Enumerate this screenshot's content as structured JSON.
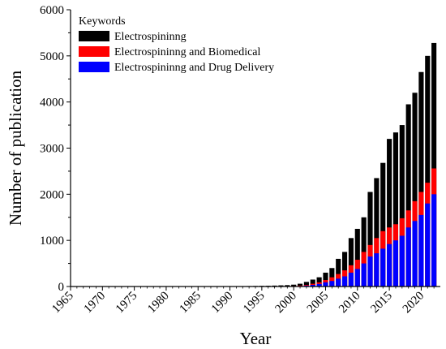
{
  "chart_data": {
    "type": "bar",
    "xlabel": "Year",
    "ylabel": "Number of publication",
    "ylim": [
      0,
      6000
    ],
    "xlim": [
      1965,
      2023
    ],
    "yticks": [
      0,
      1000,
      2000,
      3000,
      4000,
      5000,
      6000
    ],
    "xticks": [
      1965,
      1970,
      1975,
      1980,
      1985,
      1990,
      1995,
      2000,
      2005,
      2010,
      2015,
      2020
    ],
    "legend": {
      "title": "Keywords",
      "placement": "top-left"
    },
    "categories": [
      1967,
      1968,
      1969,
      1970,
      1971,
      1972,
      1973,
      1974,
      1975,
      1976,
      1977,
      1978,
      1979,
      1980,
      1981,
      1982,
      1983,
      1984,
      1985,
      1986,
      1987,
      1988,
      1989,
      1990,
      1991,
      1992,
      1993,
      1994,
      1995,
      1996,
      1997,
      1998,
      1999,
      2000,
      2001,
      2002,
      2003,
      2004,
      2005,
      2006,
      2007,
      2008,
      2009,
      2010,
      2011,
      2012,
      2013,
      2014,
      2015,
      2016,
      2017,
      2018,
      2019,
      2020,
      2021,
      2022
    ],
    "series": [
      {
        "name": "Electrospininng",
        "color": "#000000",
        "values": [
          2,
          2,
          2,
          2,
          2,
          3,
          3,
          3,
          3,
          3,
          3,
          4,
          4,
          4,
          4,
          4,
          5,
          5,
          5,
          5,
          6,
          6,
          6,
          7,
          8,
          9,
          10,
          12,
          14,
          16,
          20,
          25,
          30,
          40,
          60,
          100,
          150,
          200,
          300,
          400,
          600,
          750,
          1050,
          1250,
          1500,
          2050,
          2350,
          2680,
          3200,
          3340,
          3500,
          3950,
          4200,
          4650,
          5000,
          5280
        ]
      },
      {
        "name": "Electrospininng and Biomedical",
        "color": "#ff0000",
        "values": [
          0,
          0,
          0,
          0,
          0,
          0,
          0,
          0,
          0,
          0,
          0,
          0,
          0,
          0,
          0,
          0,
          0,
          0,
          0,
          0,
          0,
          0,
          0,
          0,
          0,
          0,
          0,
          0,
          0,
          0,
          2,
          5,
          8,
          10,
          20,
          35,
          60,
          90,
          140,
          200,
          270,
          350,
          460,
          580,
          750,
          900,
          1050,
          1200,
          1280,
          1350,
          1480,
          1650,
          1850,
          2050,
          2250,
          2560
        ]
      },
      {
        "name": "Electrospininng and Drug Delivery",
        "color": "#0000ff",
        "values": [
          0,
          0,
          0,
          0,
          0,
          0,
          0,
          0,
          0,
          0,
          0,
          0,
          0,
          0,
          0,
          0,
          0,
          0,
          0,
          0,
          0,
          0,
          0,
          0,
          0,
          0,
          0,
          0,
          0,
          0,
          0,
          2,
          4,
          6,
          10,
          20,
          35,
          55,
          90,
          120,
          170,
          220,
          300,
          380,
          500,
          650,
          720,
          820,
          920,
          1000,
          1100,
          1280,
          1420,
          1550,
          1800,
          2000
        ]
      }
    ],
    "extra_last_bar": {
      "year": 2022,
      "note": ""
    }
  }
}
